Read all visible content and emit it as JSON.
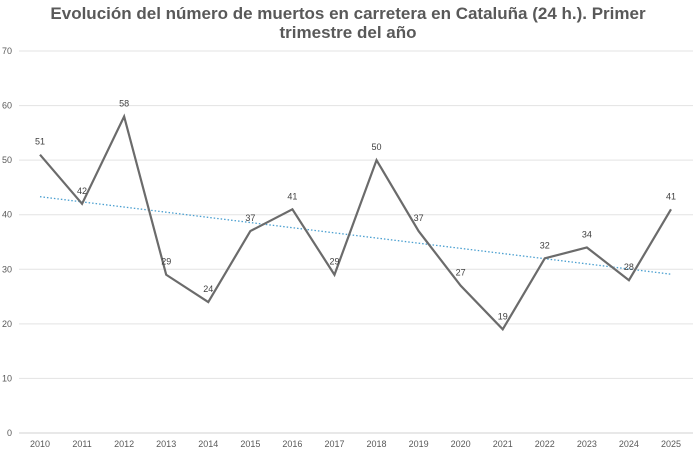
{
  "chart_data": {
    "type": "line",
    "title": "Evolución del número de muertos en carretera en Cataluña (24 h.). Primer trimestre del año",
    "xlabel": "",
    "ylabel": "",
    "categories": [
      "2010",
      "2011",
      "2012",
      "2013",
      "2014",
      "2015",
      "2016",
      "2017",
      "2018",
      "2019",
      "2020",
      "2021",
      "2022",
      "2023",
      "2024",
      "2025"
    ],
    "series": [
      {
        "values": [
          51,
          42,
          58,
          29,
          24,
          37,
          41,
          29,
          50,
          37,
          27,
          19,
          32,
          34,
          28,
          41
        ],
        "color": "#6b6b6b"
      }
    ],
    "trendline": {
      "type": "linear",
      "start": 43.3,
      "end": 29.1,
      "color": "#4a9fd0",
      "style": "dotted"
    },
    "ylim": [
      0,
      70
    ],
    "yticks": [
      0,
      10,
      20,
      30,
      40,
      50,
      60,
      70
    ],
    "grid": true,
    "data_labels": true,
    "legend": "none"
  }
}
